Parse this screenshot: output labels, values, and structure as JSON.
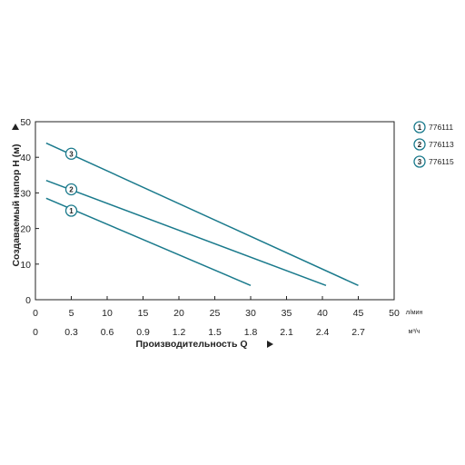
{
  "chart_data": {
    "type": "line",
    "xlabel": "Производительность Q",
    "ylabel": "Создаваемый напор H (м)",
    "x_unit": "л/мин",
    "x2_unit": "м³/ч",
    "xlim": [
      0,
      50
    ],
    "ylim": [
      0,
      50
    ],
    "x_ticks": [
      "0",
      "5",
      "10",
      "15",
      "20",
      "25",
      "30",
      "35",
      "40",
      "45",
      "50"
    ],
    "x2_ticks": [
      "0",
      "0.3",
      "0.6",
      "0.9",
      "1.2",
      "1.5",
      "1.8",
      "2.1",
      "2.4",
      "2.7"
    ],
    "y_ticks": [
      "0",
      "10",
      "20",
      "30",
      "40",
      "50"
    ],
    "grid": false,
    "legend_position": "right",
    "line_color": "#1a7a8c",
    "series": [
      {
        "marker": "1",
        "name": "776111",
        "x": [
          1.5,
          30
        ],
        "y": [
          28.5,
          4
        ],
        "label_x": 5,
        "label_y": 25
      },
      {
        "marker": "2",
        "name": "776113",
        "x": [
          1.5,
          40.5
        ],
        "y": [
          33.5,
          4
        ],
        "label_x": 5,
        "label_y": 31
      },
      {
        "marker": "3",
        "name": "776115",
        "x": [
          1.5,
          45
        ],
        "y": [
          44,
          4
        ],
        "label_x": 5,
        "label_y": 41
      }
    ]
  }
}
